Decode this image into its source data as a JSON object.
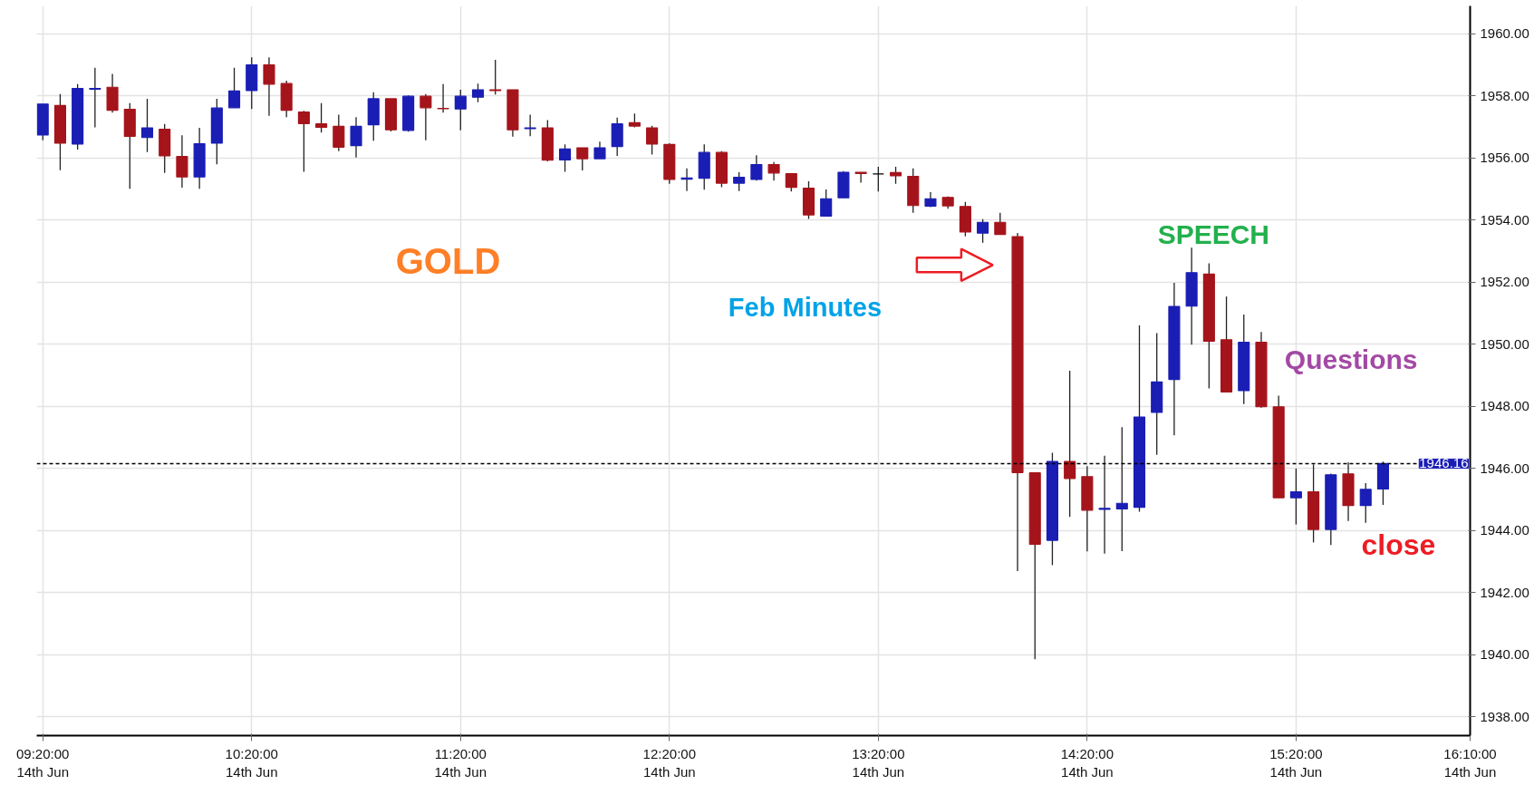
{
  "chart_data": {
    "type": "candlestick",
    "categories": [
      "09:20:00\n14th Jun",
      null,
      null,
      null,
      null,
      null,
      null,
      null,
      null,
      null,
      null,
      null,
      "10:20:00\n14th Jun",
      null,
      null,
      null,
      null,
      null,
      null,
      null,
      null,
      null,
      null,
      null,
      "11:20:00\n14th Jun",
      null,
      null,
      null,
      null,
      null,
      null,
      null,
      null,
      null,
      null,
      null,
      "12:20:00\n14th Jun",
      null,
      null,
      null,
      null,
      null,
      null,
      null,
      null,
      null,
      null,
      null,
      "13:20:00\n14th Jun",
      null,
      null,
      null,
      null,
      null,
      null,
      null,
      null,
      null,
      null,
      null,
      "14:20:00\n14th Jun",
      null,
      null,
      null,
      null,
      null,
      null,
      null,
      null,
      null,
      null,
      null,
      "15:20:00\n14th Jun",
      null,
      null,
      null,
      null,
      null,
      null,
      null,
      null,
      null,
      "16:10:00\n14th Jun"
    ],
    "ohlc": [
      [
        1956.74,
        1957.74,
        1956.57,
        1957.74
      ],
      [
        1957.69,
        1958.06,
        1955.61,
        1956.48
      ],
      [
        1956.45,
        1958.38,
        1956.27,
        1958.24
      ],
      [
        1958.22,
        1958.91,
        1956.99,
        1958.24
      ],
      [
        1958.28,
        1958.71,
        1957.46,
        1957.54
      ],
      [
        1957.57,
        1957.77,
        1955.01,
        1956.7
      ],
      [
        1956.66,
        1957.91,
        1956.19,
        1956.97
      ],
      [
        1956.93,
        1957.1,
        1955.52,
        1956.07
      ],
      [
        1956.05,
        1956.73,
        1955.05,
        1955.39
      ],
      [
        1955.39,
        1956.97,
        1955.01,
        1956.46
      ],
      [
        1956.48,
        1957.91,
        1955.8,
        1957.61
      ],
      [
        1957.62,
        1958.91,
        1957.62,
        1958.16
      ],
      [
        1958.17,
        1959.24,
        1957.58,
        1959.0
      ],
      [
        1959.0,
        1959.24,
        1957.36,
        1958.38
      ],
      [
        1958.4,
        1958.49,
        1957.32,
        1957.54
      ],
      [
        1957.48,
        1957.52,
        1955.56,
        1957.11
      ],
      [
        1957.1,
        1957.77,
        1956.82,
        1956.99
      ],
      [
        1957.02,
        1957.4,
        1956.22,
        1956.35
      ],
      [
        1956.4,
        1957.32,
        1956.02,
        1957.02
      ],
      [
        1957.07,
        1958.12,
        1956.56,
        1957.91
      ],
      [
        1957.91,
        1957.91,
        1956.86,
        1956.91
      ],
      [
        1956.89,
        1958.02,
        1956.85,
        1957.99
      ],
      [
        1957.99,
        1958.06,
        1956.57,
        1957.62
      ],
      [
        1957.6,
        1958.38,
        1957.46,
        1957.59
      ],
      [
        1957.58,
        1958.2,
        1956.89,
        1957.99
      ],
      [
        1957.96,
        1958.4,
        1957.8,
        1958.2
      ],
      [
        1958.2,
        1959.16,
        1958.05,
        1958.17
      ],
      [
        1958.2,
        1958.2,
        1956.69,
        1956.91
      ],
      [
        1956.95,
        1957.4,
        1956.7,
        1956.97
      ],
      [
        1956.97,
        1957.22,
        1955.89,
        1955.93
      ],
      [
        1955.94,
        1956.44,
        1955.56,
        1956.29
      ],
      [
        1956.33,
        1956.33,
        1955.6,
        1955.98
      ],
      [
        1955.98,
        1956.53,
        1955.98,
        1956.33
      ],
      [
        1956.37,
        1957.3,
        1956.07,
        1957.1
      ],
      [
        1957.14,
        1957.43,
        1956.99,
        1957.03
      ],
      [
        1956.97,
        1957.04,
        1956.11,
        1956.45
      ],
      [
        1956.44,
        1956.48,
        1955.17,
        1955.31
      ],
      [
        1955.32,
        1955.67,
        1954.94,
        1955.36
      ],
      [
        1955.35,
        1956.44,
        1954.98,
        1956.18
      ],
      [
        1956.18,
        1956.22,
        1955.06,
        1955.19
      ],
      [
        1955.19,
        1955.54,
        1954.94,
        1955.38
      ],
      [
        1955.31,
        1956.09,
        1955.27,
        1955.79
      ],
      [
        1955.79,
        1955.87,
        1955.27,
        1955.52
      ],
      [
        1955.5,
        1955.5,
        1954.92,
        1955.06
      ],
      [
        1955.03,
        1955.25,
        1954.04,
        1954.17
      ],
      [
        1954.13,
        1954.99,
        1954.13,
        1954.69
      ],
      [
        1954.72,
        1955.58,
        1954.72,
        1955.54
      ],
      [
        1955.54,
        1955.54,
        1955.21,
        1955.5
      ],
      [
        1955.49,
        1955.72,
        1954.92,
        1955.49
      ],
      [
        1955.53,
        1955.72,
        1955.17,
        1955.43
      ],
      [
        1955.41,
        1955.67,
        1954.24,
        1954.47
      ],
      [
        1954.45,
        1954.9,
        1954.42,
        1954.69
      ],
      [
        1954.73,
        1954.76,
        1954.37,
        1954.46
      ],
      [
        1954.44,
        1954.59,
        1953.48,
        1953.62
      ],
      [
        1953.58,
        1954.03,
        1953.27,
        1953.93
      ],
      [
        1953.93,
        1954.24,
        1953.54,
        1953.54
      ],
      [
        1953.47,
        1953.59,
        1942.7,
        1945.87
      ],
      [
        1945.86,
        1945.86,
        1939.86,
        1943.56
      ],
      [
        1943.69,
        1946.51,
        1942.89,
        1946.23
      ],
      [
        1946.23,
        1949.15,
        1944.44,
        1945.68
      ],
      [
        1945.74,
        1946.08,
        1943.33,
        1944.66
      ],
      [
        1944.69,
        1946.41,
        1943.26,
        1944.72
      ],
      [
        1944.7,
        1947.33,
        1943.34,
        1944.88
      ],
      [
        1944.75,
        1950.61,
        1944.61,
        1947.66
      ],
      [
        1947.81,
        1950.36,
        1946.44,
        1948.79
      ],
      [
        1948.87,
        1951.98,
        1947.07,
        1951.22
      ],
      [
        1951.23,
        1953.11,
        1949.99,
        1952.31
      ],
      [
        1952.26,
        1952.61,
        1948.58,
        1950.1
      ],
      [
        1950.15,
        1951.54,
        1948.47,
        1948.47
      ],
      [
        1948.51,
        1950.96,
        1948.08,
        1950.07
      ],
      [
        1950.07,
        1950.4,
        1947.96,
        1947.99
      ],
      [
        1947.99,
        1948.35,
        1945.06,
        1945.06
      ],
      [
        1945.06,
        1946.0,
        1944.2,
        1945.25
      ],
      [
        1945.25,
        1946.13,
        1943.62,
        1944.04
      ],
      [
        1944.04,
        1945.84,
        1943.54,
        1945.8
      ],
      [
        1945.83,
        1946.2,
        1944.31,
        1944.81
      ],
      [
        1944.81,
        1945.53,
        1944.25,
        1945.33
      ],
      [
        1945.34,
        1946.22,
        1944.83,
        1946.16
      ],
      null,
      null,
      null,
      null,
      null
    ],
    "colors": [
      "#1a1eb4",
      "#a5141b",
      "#1a1eb4",
      "#1a1eb4",
      "#a5141b",
      "#a5141b",
      "#1a1eb4",
      "#a5141b",
      "#a5141b",
      "#1a1eb4",
      "#1a1eb4",
      "#1a1eb4",
      "#1a1eb4",
      "#a5141b",
      "#a5141b",
      "#a5141b",
      "#a5141b",
      "#a5141b",
      "#1a1eb4",
      "#1a1eb4",
      "#a5141b",
      "#1a1eb4",
      "#a5141b",
      "#a5141b",
      "#1a1eb4",
      "#1a1eb4",
      "#a5141b",
      "#a5141b",
      "#1a1eb4",
      "#a5141b",
      "#1a1eb4",
      "#a5141b",
      "#1a1eb4",
      "#1a1eb4",
      "#a5141b",
      "#a5141b",
      "#a5141b",
      "#1a1eb4",
      "#1a1eb4",
      "#a5141b",
      "#1a1eb4",
      "#1a1eb4",
      "#a5141b",
      "#a5141b",
      "#a5141b",
      "#1a1eb4",
      "#1a1eb4",
      "#a5141b",
      "#000000",
      "#a5141b",
      "#a5141b",
      "#1a1eb4",
      "#a5141b",
      "#a5141b",
      "#1a1eb4",
      "#a5141b",
      "#a5141b",
      "#a5141b",
      "#1a1eb4",
      "#a5141b",
      "#a5141b",
      "#1a1eb4",
      "#1a1eb4",
      "#1a1eb4",
      "#1a1eb4",
      "#1a1eb4",
      "#1a1eb4",
      "#a5141b",
      "#a5141b",
      "#1a1eb4",
      "#a5141b",
      "#a5141b",
      "#1a1eb4",
      "#a5141b",
      "#1a1eb4",
      "#a5141b",
      "#1a1eb4",
      "#1a1eb4",
      null,
      null,
      null,
      null,
      null
    ],
    "ylim": [
      1937.4,
      1960.9
    ],
    "yticks": [
      {
        "value": 1938,
        "label": "1938.00"
      },
      {
        "value": 1940,
        "label": "1940.00"
      },
      {
        "value": 1942,
        "label": "1942.00"
      },
      {
        "value": 1944,
        "label": "1944.00"
      },
      {
        "value": 1946,
        "label": "1946.00"
      },
      {
        "value": 1948,
        "label": "1948.00"
      },
      {
        "value": 1950,
        "label": "1950.00"
      },
      {
        "value": 1952,
        "label": "1952.00"
      },
      {
        "value": 1954,
        "label": "1954.00"
      },
      {
        "value": 1956,
        "label": "1956.00"
      },
      {
        "value": 1958,
        "label": "1958.00"
      },
      {
        "value": 1960,
        "label": "1960.00"
      }
    ],
    "ref_lines": [
      {
        "axis": "y",
        "value": 1946.16,
        "label": "1946.16",
        "color": "#000000",
        "line_style": "dashed"
      }
    ],
    "annotations": [
      "GOLD",
      "Feb Minutes",
      "SPEECH",
      "Questions",
      "close"
    ],
    "grid": true
  }
}
